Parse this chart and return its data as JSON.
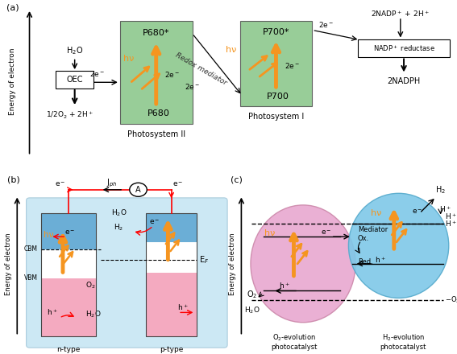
{
  "bg_color": "#ffffff",
  "light_blue_bg": "#cce8f4",
  "green_color": "#8dc88d",
  "blue_color": "#6baed6",
  "pink_color": "#f4aac0",
  "orange_color": "#f59520",
  "panel_a_label": "(a)",
  "panel_b_label": "(b)",
  "panel_c_label": "(c)",
  "blue_c": "#7ec8e8",
  "pink_c": "#e8a8d0"
}
